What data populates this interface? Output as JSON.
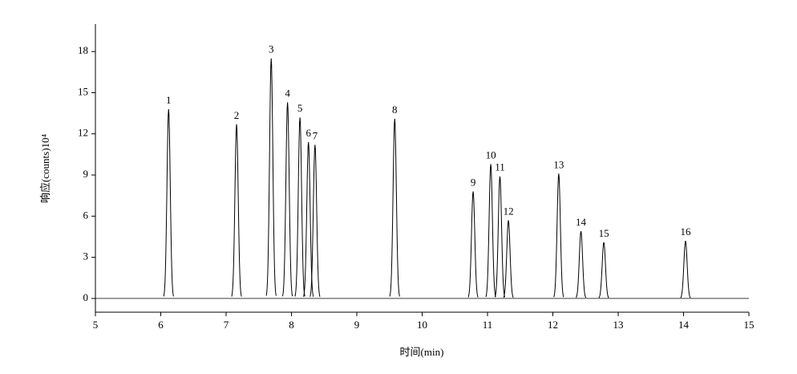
{
  "chart_data": {
    "type": "chromatogram",
    "xlabel": "时间(min)",
    "ylabel": "响应(counts)10⁴",
    "categories": [
      "1",
      "2",
      "3",
      "4",
      "5",
      "6",
      "7",
      "8",
      "9",
      "10",
      "11",
      "12",
      "13",
      "14",
      "15",
      "16"
    ],
    "x": [
      6.12,
      7.16,
      7.69,
      7.94,
      8.13,
      8.26,
      8.36,
      9.58,
      10.78,
      11.05,
      11.19,
      11.32,
      12.09,
      12.43,
      12.78,
      14.03
    ],
    "values": [
      13.8,
      12.7,
      17.5,
      14.3,
      13.2,
      11.4,
      11.2,
      13.1,
      7.8,
      9.8,
      8.9,
      5.7,
      9.1,
      4.9,
      4.1,
      4.2
    ],
    "color": "#000000",
    "xlim": [
      5,
      15
    ],
    "xticks": [
      5,
      6,
      7,
      8,
      9,
      10,
      11,
      12,
      13,
      14,
      15
    ],
    "ylim": [
      -1,
      20
    ],
    "yticks": [
      0,
      3,
      6,
      9,
      12,
      15,
      18
    ]
  }
}
